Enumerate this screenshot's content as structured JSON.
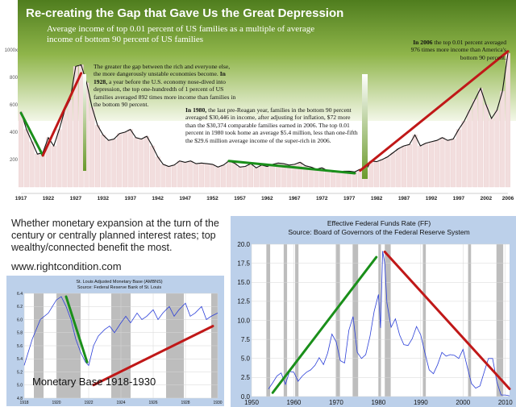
{
  "top_chart": {
    "title": "Re-creating the Gap that Gave Us the Great Depression",
    "subtitle": "Average income of top 0.01 percent of US families as a multiple of average income of bottom 90 percent of US families",
    "note_1928": {
      "intro": "The greater the gap between the rich and everyone else, the more dangerously unstable economies become.",
      "year": "In 1928,",
      "rest": "a year before the U.S. economy nose-dived into depression, the top one-hundredth of 1 percent of US families averaged 892 times more income than families in the bottom 90 percent."
    },
    "note_1980": {
      "year": "In 1980,",
      "rest": "the last pre-Reagan year, families in the bottom 90 percent averaged $30,446 in income, after adjusting for inflation, $72 more than the $30,374 comparable families earned in 2006. The top 0.01 percent in 1980 took home an average $5.4 million, less than one-fifth the $29.6 million average income of the super-rich in 2006."
    },
    "note_2006": {
      "year": "In 2006",
      "rest": "the top 0.01 percent averaged 976 times more income than America's bottom 90 percent."
    },
    "colors": {
      "band_dark": "#5f8f2a",
      "band_light": "#eef4e0",
      "bars": "#f2dede",
      "line": "#111111",
      "trend_green": "#1a8f1a",
      "trend_red": "#c01818"
    }
  },
  "caption": {
    "text": "Whether monetary expansion at the turn of the century or centrally planned interest rates; top wealthy/connected benefit the most.",
    "url": "www.rightcondition.com"
  },
  "monetary_base": {
    "title": "St. Louis Adjusted Monetary Base (AMBNS)",
    "source": "Source: Federal Reserve Bank of St. Louis",
    "label": "Monetary Base 1918-1930"
  },
  "fed_funds": {
    "title": "Effective Federal Funds Rate (FF)",
    "source": "Source: Board of Governors of the Federal Reserve System"
  },
  "chart_data": [
    {
      "type": "line",
      "title": "Re-creating the Gap that Gave Us the Great Depression",
      "subtitle": "Average income of top 0.01 percent of US families as a multiple of average income of bottom 90 percent of US families",
      "xlabel": "",
      "ylabel": "",
      "x_ticks": [
        "1917",
        "1922",
        "1927",
        "1932",
        "1937",
        "1942",
        "1947",
        "1952",
        "1957",
        "1962",
        "1967",
        "1972",
        "1977",
        "1982",
        "1987",
        "1992",
        "1997",
        "2002",
        "2006"
      ],
      "y_ticks": [
        "200",
        "400",
        "600",
        "800",
        "1000x"
      ],
      "xlim": [
        1917,
        2006
      ],
      "ylim": [
        0,
        1000
      ],
      "grid": false,
      "x": [
        1917,
        1918,
        1919,
        1920,
        1921,
        1922,
        1923,
        1924,
        1925,
        1926,
        1927,
        1928,
        1929,
        1930,
        1931,
        1932,
        1933,
        1934,
        1935,
        1936,
        1937,
        1938,
        1939,
        1940,
        1941,
        1942,
        1943,
        1944,
        1945,
        1946,
        1947,
        1948,
        1949,
        1950,
        1951,
        1952,
        1953,
        1954,
        1955,
        1956,
        1957,
        1958,
        1959,
        1960,
        1961,
        1962,
        1963,
        1964,
        1965,
        1966,
        1967,
        1968,
        1969,
        1970,
        1971,
        1972,
        1973,
        1974,
        1975,
        1976,
        1977,
        1978,
        1979,
        1980,
        1981,
        1982,
        1983,
        1984,
        1985,
        1986,
        1987,
        1988,
        1989,
        1990,
        1991,
        1992,
        1993,
        1994,
        1995,
        1996,
        1997,
        1998,
        1999,
        2000,
        2001,
        2002,
        2003,
        2004,
        2005,
        2006
      ],
      "values": [
        550,
        420,
        330,
        240,
        250,
        360,
        300,
        420,
        560,
        640,
        880,
        892,
        760,
        580,
        450,
        380,
        340,
        350,
        390,
        400,
        420,
        360,
        350,
        370,
        300,
        220,
        165,
        150,
        160,
        190,
        180,
        190,
        170,
        175,
        170,
        165,
        145,
        160,
        190,
        175,
        145,
        150,
        170,
        140,
        160,
        150,
        165,
        175,
        170,
        160,
        165,
        180,
        155,
        145,
        130,
        140,
        120,
        110,
        110,
        115,
        115,
        110,
        130,
        120,
        190,
        185,
        200,
        220,
        250,
        280,
        300,
        310,
        380,
        300,
        320,
        330,
        340,
        360,
        340,
        350,
        420,
        480,
        560,
        640,
        720,
        600,
        500,
        560,
        700,
        976
      ],
      "trend_lines": [
        {
          "color": "trend_green",
          "from": [
            1917,
            540
          ],
          "to": [
            1921,
            230
          ]
        },
        {
          "color": "trend_red",
          "from": [
            1921,
            230
          ],
          "to": [
            1928,
            830
          ]
        },
        {
          "color": "trend_green",
          "from": [
            1955,
            190
          ],
          "to": [
            1978,
            100
          ]
        },
        {
          "color": "trend_red",
          "from": [
            1979,
            120
          ],
          "to": [
            2006,
            990
          ]
        }
      ]
    },
    {
      "type": "line",
      "title": "St. Louis Adjusted Monetary Base (AMBNS)",
      "subtitle": "Source: Federal Reserve Bank of St. Louis",
      "x_ticks": [
        "1918",
        "1920",
        "1922",
        "1924",
        "1926",
        "1928",
        "1930"
      ],
      "y_ticks": [
        "4.8",
        "5.0",
        "5.2",
        "5.4",
        "5.6",
        "5.8",
        "6.0",
        "6.2",
        "6.4"
      ],
      "xlim": [
        1918,
        1930
      ],
      "ylim": [
        4.8,
        6.4
      ],
      "grid": true,
      "recessions": [
        [
          1918.6,
          1919.2
        ],
        [
          1920.0,
          1921.5
        ],
        [
          1923.4,
          1924.6
        ],
        [
          1926.8,
          1927.9
        ],
        [
          1929.6,
          1930.0
        ]
      ],
      "x": [
        1918,
        1918.5,
        1919,
        1919.5,
        1920,
        1920.3,
        1920.6,
        1920.9,
        1921.2,
        1921.5,
        1921.8,
        1922,
        1922.3,
        1922.6,
        1923,
        1923.3,
        1923.6,
        1924,
        1924.3,
        1924.6,
        1925,
        1925.3,
        1925.6,
        1926,
        1926.3,
        1926.6,
        1927,
        1927.3,
        1927.6,
        1928,
        1928.3,
        1928.6,
        1929,
        1929.3,
        1929.6,
        1930
      ],
      "values": [
        5.3,
        5.7,
        6.0,
        6.1,
        6.3,
        6.35,
        6.2,
        6.0,
        5.7,
        5.5,
        5.35,
        5.3,
        5.6,
        5.75,
        5.85,
        5.9,
        5.8,
        5.95,
        6.05,
        5.95,
        6.1,
        6.0,
        6.05,
        6.15,
        6.0,
        6.1,
        6.2,
        6.05,
        6.15,
        6.25,
        6.05,
        6.1,
        6.2,
        6.0,
        6.05,
        6.1
      ],
      "trend_lines": [
        {
          "color": "trend_green",
          "from": [
            1920.6,
            6.35
          ],
          "to": [
            1921.9,
            5.35
          ]
        },
        {
          "color": "trend_red",
          "from": [
            1922.3,
            5.0
          ],
          "to": [
            1929.7,
            5.9
          ]
        }
      ]
    },
    {
      "type": "line",
      "title": "Effective Federal Funds Rate (FF)",
      "subtitle": "Source: Board of Governors of the Federal Reserve System",
      "x_ticks": [
        "1950",
        "1960",
        "1970",
        "1980",
        "1990",
        "2000",
        "2010"
      ],
      "y_ticks": [
        "0.0",
        "2.5",
        "5.0",
        "7.5",
        "10.0",
        "12.5",
        "15.0",
        "17.5",
        "20.0"
      ],
      "xlim": [
        1950,
        2011
      ],
      "ylim": [
        0,
        20
      ],
      "grid": true,
      "recessions": [
        [
          1953.5,
          1954.4
        ],
        [
          1957.6,
          1958.4
        ],
        [
          1960.3,
          1961.1
        ],
        [
          1969.9,
          1970.9
        ],
        [
          1973.9,
          1975.2
        ],
        [
          1980.0,
          1980.6
        ],
        [
          1981.5,
          1982.9
        ],
        [
          1990.5,
          1991.2
        ],
        [
          2001.2,
          2001.9
        ],
        [
          2007.9,
          2009.5
        ]
      ],
      "x": [
        1954,
        1955,
        1956,
        1957,
        1958,
        1959,
        1960,
        1961,
        1962,
        1963,
        1964,
        1965,
        1966,
        1967,
        1968,
        1969,
        1970,
        1971,
        1972,
        1973,
        1974,
        1975,
        1976,
        1977,
        1978,
        1979,
        1980,
        1980.5,
        1981,
        1981.5,
        1982,
        1983,
        1984,
        1985,
        1986,
        1987,
        1988,
        1989,
        1990,
        1991,
        1992,
        1993,
        1994,
        1995,
        1996,
        1997,
        1998,
        1999,
        2000,
        2001,
        2002,
        2003,
        2004,
        2005,
        2006,
        2007,
        2008,
        2009,
        2010,
        2011
      ],
      "values": [
        1.0,
        1.8,
        2.7,
        3.1,
        1.6,
        3.3,
        3.2,
        2.0,
        2.7,
        3.2,
        3.5,
        4.1,
        5.1,
        4.2,
        5.7,
        8.2,
        7.2,
        4.7,
        4.4,
        8.7,
        10.5,
        5.8,
        5.0,
        5.5,
        7.9,
        11.2,
        13.4,
        9.0,
        19.1,
        17.5,
        12.3,
        9.1,
        10.2,
        8.1,
        6.8,
        6.7,
        7.6,
        9.2,
        8.1,
        5.7,
        3.5,
        3.0,
        4.2,
        5.8,
        5.3,
        5.5,
        5.4,
        5.0,
        6.2,
        3.9,
        1.7,
        1.1,
        1.4,
        3.2,
        5.0,
        5.0,
        1.9,
        0.2,
        0.2,
        0.1
      ],
      "trend_lines": [
        {
          "color": "trend_green",
          "from": [
            1955,
            0.5
          ],
          "to": [
            1979.5,
            18.3
          ]
        },
        {
          "color": "trend_red",
          "from": [
            1981.5,
            19.0
          ],
          "to": [
            2011,
            1.0
          ]
        }
      ]
    }
  ]
}
